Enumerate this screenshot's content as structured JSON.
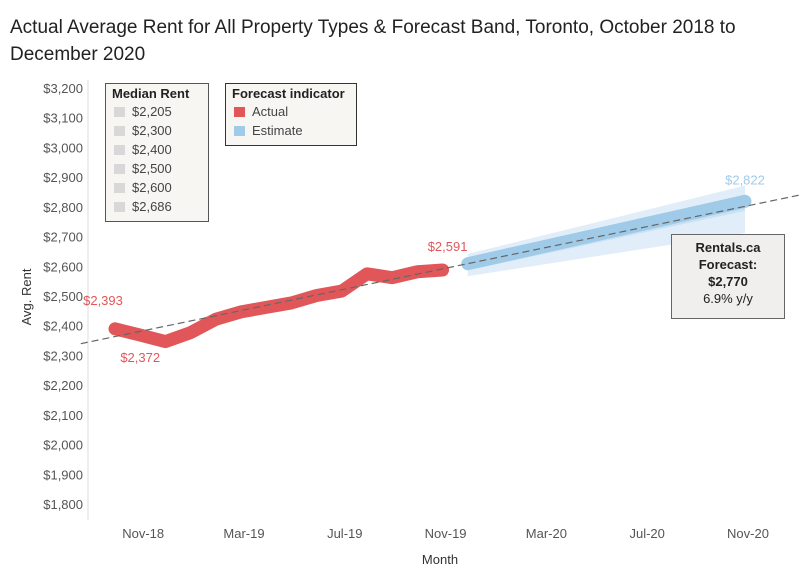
{
  "title": "Actual Average Rent for All Property Types & Forecast Band, Toronto, October 2018 to December 2020",
  "legend_median": {
    "title": "Median Rent",
    "items": [
      "$2,205",
      "$2,300",
      "$2,400",
      "$2,500",
      "$2,600",
      "$2,686"
    ]
  },
  "legend_forecast": {
    "title": "Forecast indicator",
    "items": [
      {
        "label": "Actual",
        "color": "#e15759"
      },
      {
        "label": "Estimate",
        "color": "#a0cbe8"
      }
    ]
  },
  "callout": {
    "line1": "Rentals.ca",
    "line2": "Forecast:",
    "line3": "$2,770",
    "line4": "6.9% y/y"
  },
  "chart_data": {
    "type": "line",
    "title": "Actual Average Rent for All Property Types & Forecast Band, Toronto, October 2018 to December 2020",
    "xlabel": "Month",
    "ylabel": "Avg. Rent",
    "ylim": [
      1800,
      3200
    ],
    "y_ticks": [
      "$1,800",
      "$1,900",
      "$2,000",
      "$2,100",
      "$2,200",
      "$2,300",
      "$2,400",
      "$2,500",
      "$2,600",
      "$2,700",
      "$2,800",
      "$2,900",
      "$3,000",
      "$3,100",
      "$3,200"
    ],
    "x_ticks": [
      "Nov-18",
      "Mar-19",
      "Jul-19",
      "Nov-19",
      "Mar-20",
      "Jul-20",
      "Nov-20"
    ],
    "series": [
      {
        "name": "Actual",
        "color": "#e15759",
        "x": [
          0,
          1,
          2,
          3,
          4,
          5,
          6,
          7,
          8,
          9,
          10,
          11,
          12,
          13
        ],
        "values": [
          2393,
          2372,
          2350,
          2380,
          2425,
          2450,
          2465,
          2480,
          2505,
          2520,
          2578,
          2565,
          2585,
          2591
        ]
      },
      {
        "name": "Estimate",
        "color": "#a0cbe8",
        "x": [
          14,
          25
        ],
        "values": [
          2612,
          2822
        ]
      }
    ],
    "forecast_band": {
      "x": [
        14,
        25
      ],
      "upper": [
        2645,
        2875
      ],
      "lower": [
        2570,
        2715
      ],
      "inner_upper": [
        2630,
        2845
      ],
      "inner_lower": [
        2590,
        2790
      ]
    },
    "trend_line": {
      "x": [
        -1,
        27
      ],
      "values": [
        2343,
        2845
      ]
    },
    "data_labels": [
      {
        "text": "$2,393",
        "x": 0,
        "value": 2393,
        "series": "Actual"
      },
      {
        "text": "$2,372",
        "x": 1,
        "value": 2372,
        "series": "Actual"
      },
      {
        "text": "$2,591",
        "x": 13,
        "value": 2591,
        "series": "Actual"
      },
      {
        "text": "$2,822",
        "x": 25,
        "value": 2822,
        "series": "Estimate"
      }
    ]
  }
}
